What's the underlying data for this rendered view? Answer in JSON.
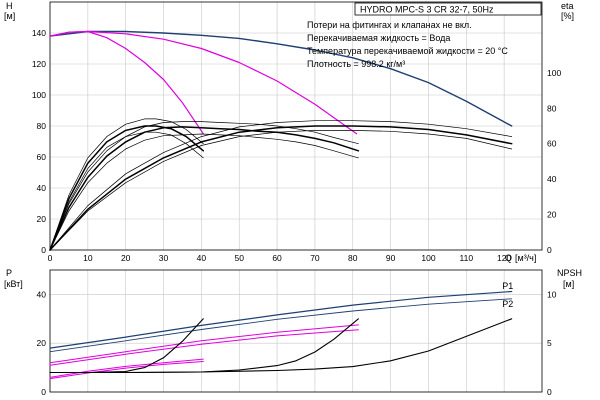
{
  "chart_data": [
    {
      "type": "line",
      "title": "HYDRO MPC-S 3 CR 32-7, 50Hz",
      "notes": [
        "Потери на фитингах и клапанах не вкл.",
        "Перекачиваемая жидкость = Вода",
        "Температура перекачиваемой жидкости = 20 °C",
        "Плотность = 998.2 кг/м³"
      ],
      "ylabel_left": "H",
      "yunit_left": "[м]",
      "ylabel_right": "eta",
      "yunit_right": "[%]",
      "xlabel": "Q",
      "xunit": "[м³/ч]",
      "xlim": [
        0,
        130
      ],
      "ylim_left": [
        0,
        160
      ],
      "ylim_right": [
        0,
        140
      ],
      "xticks": [
        0,
        10,
        20,
        30,
        40,
        50,
        60,
        70,
        80,
        90,
        100,
        110,
        120
      ],
      "yticks_left": [
        0,
        20,
        40,
        60,
        80,
        100,
        120,
        140
      ],
      "yticks_right": [
        0,
        20,
        40,
        60,
        80,
        100
      ],
      "grid": true,
      "series": [
        {
          "axis": "left",
          "color": "#1f3f73",
          "width": 1.4,
          "x": [
            0,
            10,
            20,
            30,
            40,
            50,
            60,
            70,
            80,
            90,
            100,
            110,
            122
          ],
          "y": [
            138,
            141,
            141,
            140,
            138.5,
            136.5,
            133,
            129,
            124,
            117,
            108,
            96,
            80
          ]
        },
        {
          "axis": "left",
          "color": "#e000e0",
          "width": 1.2,
          "x": [
            0,
            5,
            10,
            20,
            30,
            40,
            50,
            60,
            70,
            81
          ],
          "y": [
            138,
            140.5,
            141,
            139.5,
            136,
            130,
            121,
            109,
            94,
            75
          ]
        },
        {
          "axis": "left",
          "color": "#e000e0",
          "width": 1.2,
          "x": [
            0,
            5,
            10,
            15,
            20,
            25,
            30,
            35,
            40.5
          ],
          "y": [
            138,
            140.5,
            141,
            137,
            130,
            121,
            110,
            95,
            75
          ]
        },
        {
          "axis": "right",
          "color": "#000000",
          "width": 1.5,
          "x": [
            0,
            10,
            20,
            30,
            40,
            50,
            60,
            70,
            80,
            90,
            100,
            110,
            122
          ],
          "y": [
            0,
            23,
            40,
            52,
            61,
            66.5,
            69,
            70,
            70,
            69.5,
            68,
            65,
            60
          ]
        },
        {
          "axis": "right",
          "color": "#000000",
          "width": 0.7,
          "x": [
            0,
            10,
            20,
            30,
            40,
            50,
            60,
            70,
            80,
            90,
            100,
            110,
            122
          ],
          "y": [
            0,
            25,
            43,
            55,
            64,
            69.5,
            72,
            73,
            73,
            72.5,
            71,
            68.5,
            64
          ]
        },
        {
          "axis": "right",
          "color": "#000000",
          "width": 0.7,
          "x": [
            0,
            10,
            20,
            30,
            40,
            50,
            60,
            70,
            80,
            90,
            100,
            110,
            122
          ],
          "y": [
            0,
            22,
            38,
            50,
            59,
            64,
            66.5,
            67.5,
            67.5,
            67,
            65.5,
            63,
            57
          ]
        },
        {
          "axis": "right",
          "color": "#000000",
          "width": 1.5,
          "x": [
            0,
            5,
            10,
            15,
            20,
            25,
            30,
            35,
            40,
            45,
            50,
            55,
            60,
            65,
            70,
            75,
            81.5
          ],
          "y": [
            0,
            24,
            41,
            53,
            61,
            66.5,
            69,
            69.5,
            69,
            68.5,
            68,
            67,
            66.5,
            65,
            63,
            60.5,
            56
          ]
        },
        {
          "axis": "right",
          "color": "#000000",
          "width": 0.7,
          "x": [
            0,
            5,
            10,
            15,
            20,
            25,
            30,
            35,
            40,
            45,
            50,
            55,
            60,
            65,
            70,
            75,
            81.5
          ],
          "y": [
            0,
            26,
            44,
            56,
            64,
            69.5,
            72,
            72.5,
            72.5,
            72,
            71.5,
            71,
            70,
            68.5,
            66.5,
            63.5,
            60
          ]
        },
        {
          "axis": "right",
          "color": "#000000",
          "width": 0.7,
          "x": [
            0,
            5,
            10,
            15,
            20,
            25,
            30,
            35,
            40,
            45,
            50,
            55,
            60,
            65,
            70,
            75,
            81.5
          ],
          "y": [
            0,
            22,
            38,
            49,
            57,
            62,
            64.5,
            65,
            65.5,
            65,
            64.5,
            63.5,
            62.5,
            61,
            59,
            56,
            52
          ]
        },
        {
          "axis": "right",
          "color": "#000000",
          "width": 1.5,
          "x": [
            0,
            5,
            10,
            15,
            20,
            25,
            28,
            32,
            36,
            40.5
          ],
          "y": [
            0,
            29,
            49,
            61,
            67.5,
            70,
            70,
            68.5,
            64,
            56
          ]
        },
        {
          "axis": "right",
          "color": "#000000",
          "width": 0.7,
          "x": [
            0,
            5,
            10,
            15,
            20,
            25,
            28,
            32,
            36,
            40.5
          ],
          "y": [
            0,
            31,
            52,
            64,
            71,
            74,
            74,
            72.5,
            68,
            60
          ]
        },
        {
          "axis": "right",
          "color": "#000000",
          "width": 0.7,
          "x": [
            0,
            5,
            10,
            15,
            20,
            25,
            28,
            32,
            36,
            40.5
          ],
          "y": [
            0,
            27,
            46,
            58,
            64,
            66.5,
            66.5,
            65,
            60,
            52
          ]
        }
      ]
    },
    {
      "type": "line",
      "ylabel_left": "P",
      "yunit_left": "[кВт]",
      "ylabel_right": "NPSH",
      "yunit_right": "[м]",
      "xlim": [
        0,
        130
      ],
      "ylim_left": [
        0,
        50
      ],
      "ylim_right": [
        0,
        12.5
      ],
      "xticks": [
        0,
        10,
        20,
        30,
        40,
        50,
        60,
        70,
        80,
        90,
        100,
        110,
        120
      ],
      "yticks_left": [
        0,
        20,
        40
      ],
      "yticks_right": [
        0,
        5,
        10
      ],
      "grid": true,
      "labels": [
        {
          "text": "P1",
          "x": 119.5,
          "y": 43.5
        },
        {
          "text": "P2",
          "x": 119.5,
          "y": 36
        }
      ],
      "series": [
        {
          "axis": "left",
          "color": "#1f3f73",
          "width": 1.2,
          "x": [
            0,
            20,
            40,
            60,
            80,
            100,
            122
          ],
          "y": [
            18,
            22.5,
            27.3,
            31.6,
            35.6,
            38.8,
            41.2
          ]
        },
        {
          "axis": "left",
          "color": "#1f3f73",
          "width": 0.9,
          "x": [
            0,
            20,
            40,
            60,
            80,
            100,
            122
          ],
          "y": [
            16.5,
            21,
            25.6,
            29.8,
            33.2,
            36,
            38.2
          ]
        },
        {
          "axis": "left",
          "color": "#e000e0",
          "width": 1.0,
          "x": [
            0,
            20,
            40,
            60,
            81.5
          ],
          "y": [
            12,
            16.5,
            21,
            24.5,
            27.5
          ]
        },
        {
          "axis": "left",
          "color": "#e000e0",
          "width": 1.0,
          "x": [
            0,
            20,
            40,
            60,
            81.5
          ],
          "y": [
            11,
            15.5,
            19.6,
            23,
            25.5
          ]
        },
        {
          "axis": "left",
          "color": "#e000e0",
          "width": 1.0,
          "x": [
            0,
            10,
            20,
            30,
            40.5
          ],
          "y": [
            6,
            8.5,
            10.5,
            12,
            13.5
          ]
        },
        {
          "axis": "left",
          "color": "#e000e0",
          "width": 1.0,
          "x": [
            0,
            10,
            20,
            30,
            40.5
          ],
          "y": [
            5.5,
            7.8,
            9.8,
            11.3,
            12.5
          ]
        },
        {
          "axis": "right",
          "color": "#000000",
          "width": 1.1,
          "x": [
            0,
            20,
            40,
            60,
            70,
            80,
            90,
            100,
            110,
            122
          ],
          "y": [
            2,
            2,
            2.05,
            2.2,
            2.35,
            2.6,
            3.2,
            4.2,
            5.7,
            7.5
          ]
        },
        {
          "axis": "right",
          "color": "#000000",
          "width": 1.1,
          "x": [
            0,
            20,
            40,
            50,
            60,
            65,
            70,
            75,
            81.5
          ],
          "y": [
            2,
            2,
            2.05,
            2.25,
            2.7,
            3.2,
            4.1,
            5.4,
            7.5
          ]
        },
        {
          "axis": "right",
          "color": "#000000",
          "width": 1.1,
          "x": [
            0,
            10,
            20,
            25,
            30,
            35,
            40.5
          ],
          "y": [
            2,
            2,
            2.1,
            2.5,
            3.5,
            5.2,
            7.5
          ]
        }
      ]
    }
  ]
}
